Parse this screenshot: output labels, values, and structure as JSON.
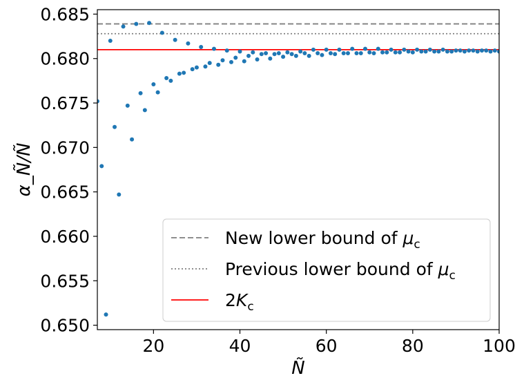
{
  "chart_data": {
    "type": "scatter",
    "title": "",
    "xlabel": "Ñ",
    "ylabel": "α_Ñ/Ñ",
    "xlim": [
      7,
      100
    ],
    "ylim": [
      0.6495,
      0.6855
    ],
    "xticks": [
      20,
      40,
      60,
      80,
      100
    ],
    "yticks": [
      0.65,
      0.655,
      0.66,
      0.665,
      0.67,
      0.675,
      0.68,
      0.685
    ],
    "xtick_labels": [
      "20",
      "40",
      "60",
      "80",
      "100"
    ],
    "ytick_labels": [
      "0.650",
      "0.655",
      "0.660",
      "0.665",
      "0.670",
      "0.675",
      "0.680",
      "0.685"
    ],
    "grid": false,
    "legend_position": "lower-right",
    "colors": {
      "points": "#1f77b4",
      "new_bound": "#7f7f7f",
      "previous_bound": "#7f7f7f",
      "two_kc": "#ff0000"
    },
    "reference_lines": [
      {
        "name": "New lower bound of μ_c",
        "label_prefix": "New lower bound of ",
        "label_symbol": "μ",
        "label_sub": "c",
        "y": 0.6839,
        "style": "dashed"
      },
      {
        "name": "Previous lower bound of μ_c",
        "label_prefix": "Previous lower bound of ",
        "label_symbol": "μ",
        "label_sub": "c",
        "y": 0.6828,
        "style": "dotted"
      },
      {
        "name": "2K_c",
        "label_prefix": "2",
        "label_symbol": "K",
        "label_sub": "c",
        "y": 0.681,
        "style": "solid"
      }
    ],
    "series": [
      {
        "x": [
          7,
          8,
          9,
          10,
          11,
          12,
          13,
          14,
          15,
          16,
          17,
          18,
          19,
          20,
          21,
          22,
          23,
          24,
          25,
          26,
          27,
          28,
          29,
          30,
          31,
          32,
          33,
          34,
          35,
          36,
          37,
          38,
          39,
          40,
          41,
          42,
          43,
          44,
          45,
          46,
          47,
          48,
          49,
          50,
          51,
          52,
          53,
          54,
          55,
          56,
          57,
          58,
          59,
          60,
          61,
          62,
          63,
          64,
          65,
          66,
          67,
          68,
          69,
          70,
          71,
          72,
          73,
          74,
          75,
          76,
          77,
          78,
          79,
          80,
          81,
          82,
          83,
          84,
          85,
          86,
          87,
          88,
          89,
          90,
          91,
          92,
          93,
          94,
          95,
          96,
          97,
          98,
          99,
          100
        ],
        "values": [
          0.6752,
          0.6679,
          0.6512,
          0.682,
          0.6723,
          0.6647,
          0.6836,
          0.6747,
          0.6709,
          0.6839,
          0.6761,
          0.6742,
          0.684,
          0.6771,
          0.6762,
          0.6829,
          0.6778,
          0.6775,
          0.6821,
          0.6783,
          0.6784,
          0.6817,
          0.6788,
          0.679,
          0.6813,
          0.6791,
          0.6795,
          0.6811,
          0.6793,
          0.6798,
          0.6809,
          0.6796,
          0.6801,
          0.6808,
          0.6797,
          0.6803,
          0.6807,
          0.6799,
          0.6805,
          0.6806,
          0.68,
          0.6805,
          0.6806,
          0.6802,
          0.6807,
          0.6805,
          0.6803,
          0.6808,
          0.6806,
          0.6803,
          0.681,
          0.6806,
          0.6804,
          0.681,
          0.6806,
          0.6805,
          0.681,
          0.6806,
          0.6806,
          0.6811,
          0.6806,
          0.6806,
          0.6811,
          0.6807,
          0.6806,
          0.6811,
          0.6807,
          0.6807,
          0.681,
          0.6807,
          0.6807,
          0.681,
          0.6808,
          0.6807,
          0.681,
          0.6808,
          0.6808,
          0.681,
          0.6808,
          0.6808,
          0.681,
          0.6808,
          0.6808,
          0.6809,
          0.6809,
          0.6808,
          0.6809,
          0.6809,
          0.6808,
          0.6809,
          0.6809,
          0.6808,
          0.6809,
          0.6808
        ]
      }
    ]
  }
}
